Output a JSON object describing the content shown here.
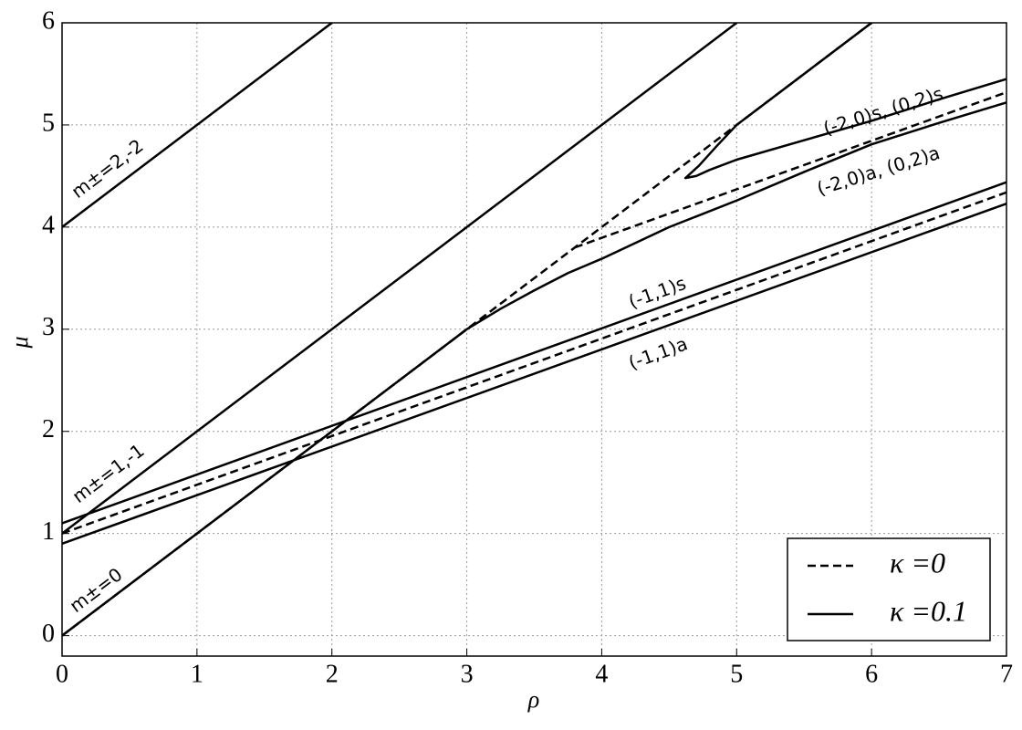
{
  "chart_data": {
    "type": "line",
    "xlabel": "ρ",
    "ylabel": "μ",
    "xlim": [
      0,
      7
    ],
    "ylim": [
      -0.2,
      6
    ],
    "xticks": [
      0,
      1,
      2,
      3,
      4,
      5,
      6,
      7
    ],
    "yticks": [
      0,
      1,
      2,
      3,
      4,
      5,
      6
    ],
    "grid": true,
    "legend_position": "lower right",
    "legend": [
      {
        "label": "κ =0",
        "dashed": true
      },
      {
        "label": "κ =0.1",
        "dashed": false
      }
    ],
    "series": [
      {
        "color": "#000000",
        "dashed": false,
        "x": [
          0,
          2
        ],
        "values": [
          4,
          6
        ]
      },
      {
        "color": "#000000",
        "dashed": false,
        "x": [
          0,
          5
        ],
        "values": [
          1,
          6
        ]
      },
      {
        "color": "#000000",
        "dashed": true,
        "x": [
          0,
          6
        ],
        "values": [
          0,
          6
        ]
      },
      {
        "color": "#000000",
        "dashed": true,
        "x": [
          3.8,
          7
        ],
        "values": [
          3.8,
          5.32
        ]
      },
      {
        "color": "#000000",
        "dashed": true,
        "x": [
          0,
          7
        ],
        "values": [
          1,
          4.34
        ]
      },
      {
        "color": "#000000",
        "dashed": false,
        "x": [
          0,
          7
        ],
        "values": [
          1.1,
          4.44
        ]
      },
      {
        "color": "#000000",
        "dashed": false,
        "x": [
          0,
          7
        ],
        "values": [
          0.9,
          4.23
        ]
      },
      {
        "color": "#000000",
        "dashed": false,
        "x": [
          0,
          2,
          3,
          3.25,
          3.5,
          3.75,
          4,
          4.5,
          5,
          5.5,
          6,
          6.5,
          7
        ],
        "values": [
          0,
          2,
          3,
          3.2,
          3.38,
          3.55,
          3.69,
          4.0,
          4.26,
          4.54,
          4.81,
          5.02,
          5.22
        ]
      },
      {
        "color": "#000000",
        "dashed": false,
        "x": [
          6,
          5.5,
          5,
          4.85,
          4.72,
          4.62,
          4.7,
          4.8,
          5,
          5.5,
          6,
          6.5,
          7
        ],
        "values": [
          6,
          5.5,
          5,
          4.79,
          4.6,
          4.48,
          4.5,
          4.56,
          4.66,
          4.85,
          5.04,
          5.25,
          5.45
        ]
      }
    ],
    "annotations": [
      "m±=2,-2",
      "m±=1,-1",
      "m±=0",
      "(-2,0)s, (0,2)s",
      "(-2,0)a, (0,2)a",
      "(-1,1)s",
      "(-1,1)a"
    ]
  }
}
